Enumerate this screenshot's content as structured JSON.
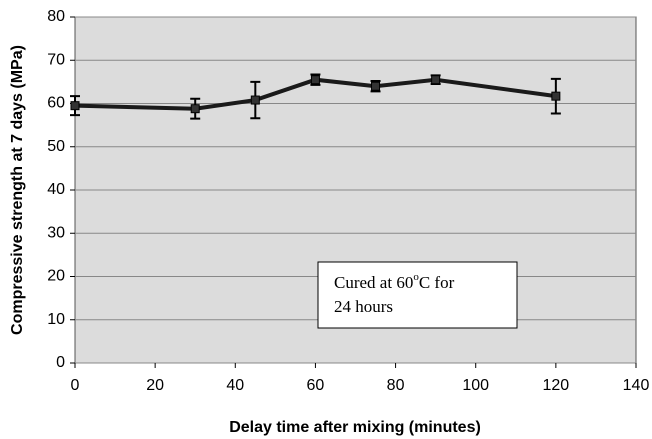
{
  "chart_data": {
    "type": "line",
    "x_label": "Delay time after mixing (minutes)",
    "y_label": "Compressive strength at 7 days (MPa)",
    "annotation": [
      "Cured at 60",
      "o",
      "C for",
      "24 hours"
    ],
    "x": [
      0,
      30,
      45,
      60,
      75,
      90,
      120
    ],
    "series": [
      {
        "color": "#1a1a1a",
        "values": [
          59.5,
          58.8,
          60.8,
          65.5,
          64,
          65.5,
          61.7
        ],
        "errors": [
          2.2,
          2.3,
          4.2,
          1.2,
          1.2,
          1,
          4
        ]
      }
    ],
    "xlim": [
      0,
      140
    ],
    "xticks": [
      0,
      20,
      40,
      60,
      80,
      100,
      120,
      140
    ],
    "ylim": [
      0,
      80
    ],
    "yticks": [
      0,
      10,
      20,
      30,
      40,
      50,
      60,
      70,
      80
    ],
    "grid": true
  }
}
